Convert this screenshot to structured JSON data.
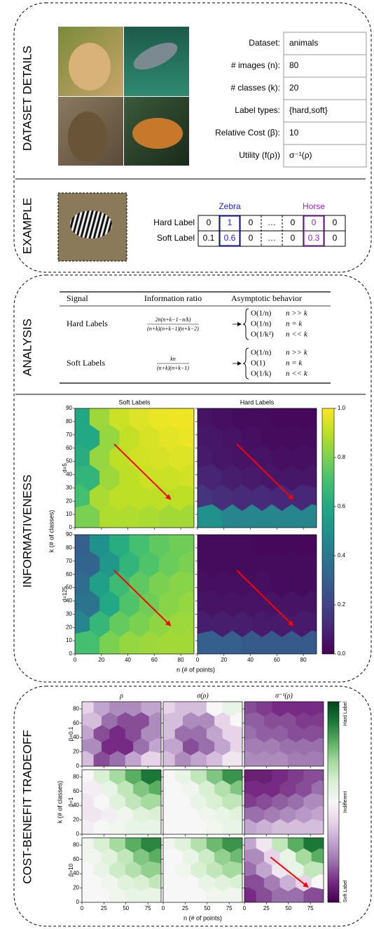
{
  "sections": [
    "DATASET DETAILS",
    "EXAMPLE",
    "ANALYSIS",
    "INFORMATIVENESS",
    "COST-BENEFIT TRADEOFF"
  ],
  "dataset_table": [
    [
      "Dataset:",
      "animals"
    ],
    [
      "# images (n):",
      80
    ],
    [
      "# classes (k):",
      20
    ],
    [
      "Label types:",
      "{hard,soft}"
    ],
    [
      "Relative Cost (β):",
      10
    ],
    [
      "Utility (f(ρ))",
      "σ⁻¹(ρ)"
    ]
  ],
  "example": {
    "classes": [
      null,
      "Zebra",
      null,
      null,
      null,
      "Horse",
      null
    ],
    "rows": [
      {
        "label": "Hard Label",
        "cells": [
          0,
          1,
          0,
          "…",
          0,
          0,
          0
        ]
      },
      {
        "label": "Soft Label",
        "cells": [
          0.1,
          0.6,
          0,
          "…",
          0,
          0.3,
          0
        ]
      }
    ]
  },
  "analysis": {
    "headers": [
      "Signal",
      "Information ratio",
      "Asymptotic behavior"
    ],
    "rows": [
      {
        "signal": "Hard Labels",
        "ratio": {
          "numerator": "2n(n+k−1−n/k)",
          "denominator": "(n+k)(n+k−1)(n+k−2)"
        },
        "cases": [
          {
            "expr": "O(1/n)",
            "cond": "n >> k"
          },
          {
            "expr": "O(1/n)",
            "cond": "n = k"
          },
          {
            "expr": "O(1/k²)",
            "cond": "n << k"
          }
        ]
      },
      {
        "signal": "Soft Labels",
        "ratio": {
          "numerator": "kn",
          "denominator": "(n+k)(n+k−1)"
        },
        "cases": [
          {
            "expr": "O(1/n)",
            "cond": "n >> k"
          },
          {
            "expr": "O(1)",
            "cond": "n = k"
          },
          {
            "expr": "O(1/k)",
            "cond": "n << k"
          }
        ]
      }
    ]
  },
  "chart_data": [
    {
      "type": "hexbin",
      "column_titles": [
        "Soft Labels",
        "Hard Labels"
      ],
      "row_titles": [
        "d=5",
        "d=125"
      ],
      "xlabel": "n (# of points)",
      "ylabel": "k (# of classes)",
      "xlim": [
        0,
        90
      ],
      "ylim": [
        0,
        90
      ],
      "xticks": [
        0,
        20,
        40,
        60,
        80
      ],
      "yticks": [
        0,
        10,
        20,
        30,
        40,
        50,
        60,
        70,
        80,
        90
      ],
      "colormap": "viridis",
      "zlim": [
        0,
        1
      ],
      "zticks": [
        {
          "value": 0,
          "label": "0.0"
        },
        0.2,
        0.4,
        0.6,
        0.8,
        {
          "value": 1,
          "label": "1.0"
        }
      ],
      "panels": [
        [
          [
            [
              0.6,
              0.85,
              0.92,
              0.95,
              0.97,
              0.98
            ],
            [
              0.6,
              0.84,
              0.91,
              0.94,
              0.96,
              0.97
            ],
            [
              0.62,
              0.84,
              0.9,
              0.93,
              0.94,
              0.95
            ],
            [
              0.65,
              0.85,
              0.9,
              0.92,
              0.92,
              0.93
            ],
            [
              0.7,
              0.87,
              0.9,
              0.9,
              0.9,
              0.9
            ],
            [
              0.8,
              0.88,
              0.88,
              0.87,
              0.86,
              0.86
            ]
          ],
          [
            [
              0.05,
              0.04,
              0.03,
              0.03,
              0.02,
              0.02
            ],
            [
              0.06,
              0.05,
              0.04,
              0.03,
              0.03,
              0.03
            ],
            [
              0.07,
              0.06,
              0.05,
              0.05,
              0.04,
              0.04
            ],
            [
              0.1,
              0.08,
              0.07,
              0.06,
              0.06,
              0.06
            ],
            [
              0.15,
              0.13,
              0.12,
              0.12,
              0.11,
              0.11
            ],
            [
              0.5,
              0.45,
              0.45,
              0.45,
              0.45,
              0.45
            ]
          ]
        ],
        [
          [
            [
              0.3,
              0.5,
              0.62,
              0.7,
              0.75,
              0.78
            ],
            [
              0.32,
              0.52,
              0.65,
              0.72,
              0.77,
              0.8
            ],
            [
              0.35,
              0.56,
              0.68,
              0.75,
              0.8,
              0.82
            ],
            [
              0.38,
              0.6,
              0.72,
              0.78,
              0.82,
              0.84
            ],
            [
              0.45,
              0.66,
              0.76,
              0.8,
              0.83,
              0.85
            ],
            [
              0.7,
              0.8,
              0.84,
              0.85,
              0.86,
              0.86
            ]
          ],
          [
            [
              0.03,
              0.03,
              0.03,
              0.02,
              0.02,
              0.02
            ],
            [
              0.03,
              0.03,
              0.03,
              0.03,
              0.03,
              0.03
            ],
            [
              0.04,
              0.04,
              0.04,
              0.04,
              0.03,
              0.03
            ],
            [
              0.05,
              0.05,
              0.05,
              0.05,
              0.05,
              0.05
            ],
            [
              0.08,
              0.08,
              0.08,
              0.07,
              0.07,
              0.07
            ],
            [
              0.3,
              0.3,
              0.28,
              0.28,
              0.28,
              0.28
            ]
          ]
        ]
      ]
    },
    {
      "type": "hexbin",
      "column_titles": [
        "ρ",
        "σ(ρ)",
        "σ⁻¹(ρ)"
      ],
      "row_titles": [
        "β=0.1",
        "β=1",
        "β=10"
      ],
      "xlabel": "n (# of points)",
      "ylabel": "k (# of classes)",
      "xlim": [
        0,
        90
      ],
      "ylim": [
        0,
        90
      ],
      "xticks": [
        0,
        25,
        50,
        75
      ],
      "yticks": [
        0,
        20,
        40,
        60,
        80
      ],
      "colormap": "PRGn",
      "zlim": [
        -1,
        1
      ],
      "zticks": [
        {
          "value": -1,
          "label": "Soft Label"
        },
        {
          "value": 0,
          "label": "Indifferent"
        },
        {
          "value": 1,
          "label": "Hard Label"
        }
      ],
      "panels": [
        [
          [
            [
              -0.2,
              -0.4,
              -0.5,
              -0.5,
              -0.4
            ],
            [
              -0.3,
              -0.6,
              -0.7,
              -0.7,
              -0.5
            ],
            [
              -0.4,
              -0.7,
              -0.8,
              -0.7,
              -0.5
            ],
            [
              -0.5,
              -0.8,
              -0.8,
              -0.6,
              -0.4
            ],
            [
              -0.3,
              -0.7,
              -0.6,
              -0.4,
              -0.2
            ]
          ],
          [
            [
              -0.2,
              -0.3,
              -0.3,
              0.0,
              0.1
            ],
            [
              -0.3,
              -0.5,
              -0.5,
              -0.2,
              0.0
            ],
            [
              -0.3,
              -0.6,
              -0.6,
              -0.4,
              -0.2
            ],
            [
              -0.4,
              -0.7,
              -0.6,
              -0.4,
              -0.2
            ],
            [
              -0.3,
              -0.5,
              -0.4,
              -0.3,
              -0.1
            ]
          ],
          [
            [
              -0.7,
              -0.75,
              -0.8,
              -0.8,
              -0.8
            ],
            [
              -0.65,
              -0.7,
              -0.7,
              -0.75,
              -0.75
            ],
            [
              -0.6,
              -0.65,
              -0.65,
              -0.7,
              -0.7
            ],
            [
              -0.55,
              -0.55,
              -0.6,
              -0.6,
              -0.6
            ],
            [
              -0.5,
              -0.5,
              -0.5,
              -0.55,
              -0.55
            ]
          ]
        ],
        [
          [
            [
              0.0,
              0.2,
              0.4,
              0.6,
              0.8
            ],
            [
              -0.05,
              0.1,
              0.3,
              0.5,
              0.6
            ],
            [
              -0.1,
              0.0,
              0.15,
              0.3,
              0.4
            ],
            [
              -0.1,
              -0.05,
              0.05,
              0.15,
              0.2
            ],
            [
              -0.05,
              0.0,
              0.05,
              0.1,
              0.1
            ]
          ],
          [
            [
              0.0,
              0.1,
              0.3,
              0.5,
              0.7
            ],
            [
              0.0,
              0.05,
              0.2,
              0.35,
              0.5
            ],
            [
              0.0,
              0.0,
              0.1,
              0.2,
              0.3
            ],
            [
              0.0,
              0.0,
              0.05,
              0.1,
              0.15
            ],
            [
              0.0,
              0.0,
              0.0,
              0.05,
              0.1
            ]
          ],
          [
            [
              -0.85,
              -0.85,
              -0.8,
              -0.75,
              -0.7
            ],
            [
              -0.8,
              -0.8,
              -0.75,
              -0.7,
              -0.6
            ],
            [
              -0.75,
              -0.7,
              -0.65,
              -0.6,
              -0.5
            ],
            [
              -0.6,
              -0.55,
              -0.5,
              -0.45,
              -0.4
            ],
            [
              -0.4,
              -0.35,
              -0.3,
              -0.3,
              -0.3
            ]
          ]
        ],
        [
          [
            [
              0.05,
              0.2,
              0.4,
              0.6,
              0.75
            ],
            [
              0.05,
              0.15,
              0.3,
              0.5,
              0.6
            ],
            [
              0.0,
              0.1,
              0.25,
              0.35,
              0.45
            ],
            [
              0.0,
              0.05,
              0.15,
              0.2,
              0.3
            ],
            [
              0.0,
              0.0,
              0.05,
              0.1,
              0.1
            ]
          ],
          [
            [
              0.05,
              0.15,
              0.35,
              0.55,
              0.7
            ],
            [
              0.0,
              0.1,
              0.25,
              0.45,
              0.55
            ],
            [
              0.0,
              0.05,
              0.2,
              0.3,
              0.4
            ],
            [
              0.0,
              0.0,
              0.1,
              0.15,
              0.2
            ],
            [
              0.0,
              0.0,
              0.0,
              0.05,
              0.05
            ]
          ],
          [
            [
              -0.4,
              -0.1,
              0.3,
              0.6,
              0.8
            ],
            [
              -0.5,
              -0.2,
              0.1,
              0.4,
              0.6
            ],
            [
              -0.6,
              -0.4,
              -0.1,
              0.1,
              0.3
            ],
            [
              -0.7,
              -0.55,
              -0.35,
              -0.2,
              0.0
            ],
            [
              -0.8,
              -0.7,
              -0.6,
              -0.6,
              -0.7
            ]
          ]
        ]
      ]
    }
  ]
}
